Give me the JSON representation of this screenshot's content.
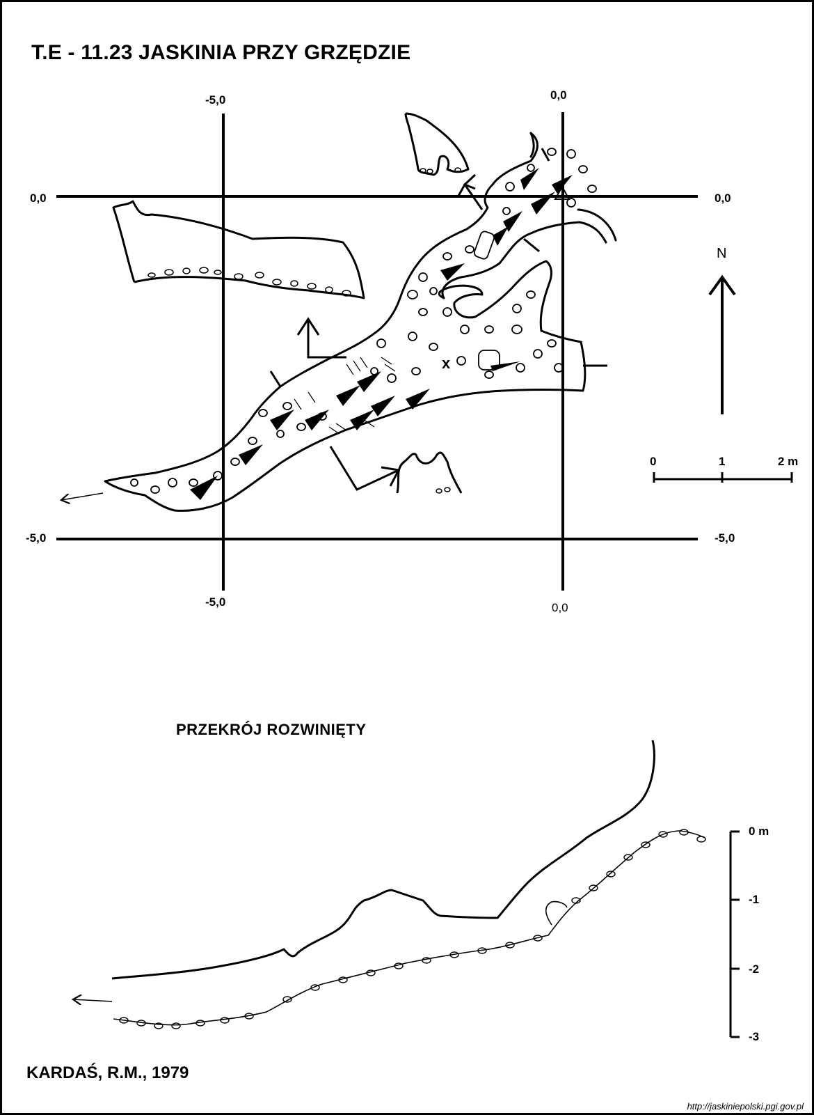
{
  "title": "T.E - 11.23  JASKINIA PRZY GRZĘDZIE",
  "plan": {
    "grid_labels": {
      "x_top_left": "-5,0",
      "x_top_right": "0,0",
      "y_left_top": "0,0",
      "y_right_top": "0,0",
      "y_left_bottom": "-5,0",
      "y_right_bottom": "-5,0",
      "x_bottom_left": "-5,0",
      "x_bottom_right": "0,0"
    },
    "north_label": "N",
    "scale_bar": {
      "tick_labels": [
        "0",
        "1",
        "2 m"
      ]
    },
    "colors": {
      "ink": "#000000",
      "paper": "#ffffff"
    }
  },
  "section": {
    "title": "PRZEKRÓJ ROZWINIĘTY",
    "scale_labels": [
      "0 m",
      "-1",
      "-2",
      "-3"
    ]
  },
  "author": "KARDAŚ, R.M., 1979",
  "source_url": "http://jaskiniepolski.pgi.gov.pl"
}
